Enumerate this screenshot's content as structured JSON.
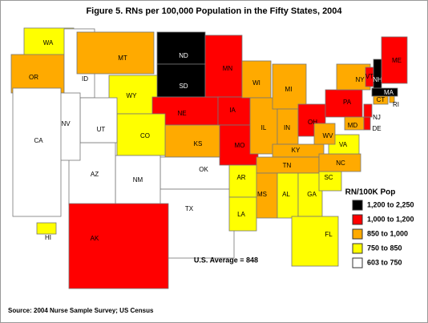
{
  "title": "Figure 5. RNs per 100,000 Population in the Fifty States, 2004",
  "legend": {
    "title": "RN/100K Pop",
    "items": [
      {
        "label": "1,200 to 2,250",
        "color": "#000000"
      },
      {
        "label": "1,000 to 1,200",
        "color": "#ff0000"
      },
      {
        "label": "850 to 1,000",
        "color": "#ffaa00"
      },
      {
        "label": "750 to  850",
        "color": "#ffff00"
      },
      {
        "label": "603 to  750",
        "color": "#ffffff"
      }
    ]
  },
  "average": "U.S. Average = 848",
  "source": "Source: 2004 Nurse Sample Survey; US Census",
  "states": [
    {
      "label": "WA",
      "color": "#ffff00"
    },
    {
      "label": "OR",
      "color": "#ffaa00"
    },
    {
      "label": "ID",
      "color": "#ffffff"
    },
    {
      "label": "MT",
      "color": "#ffaa00"
    },
    {
      "label": "WY",
      "color": "#ffff00"
    },
    {
      "label": "ND",
      "color": "#000000"
    },
    {
      "label": "SD",
      "color": "#000000"
    },
    {
      "label": "NE",
      "color": "#ff0000"
    },
    {
      "label": "KS",
      "color": "#ffaa00"
    },
    {
      "label": "OK",
      "color": "#ffffff"
    },
    {
      "label": "TX",
      "color": "#ffffff"
    },
    {
      "label": "CO",
      "color": "#ffff00"
    },
    {
      "label": "NM",
      "color": "#ffffff"
    },
    {
      "label": "AZ",
      "color": "#ffffff"
    },
    {
      "label": "UT",
      "color": "#ffffff"
    },
    {
      "label": "NV",
      "color": "#ffffff"
    },
    {
      "label": "CA",
      "color": "#ffffff"
    },
    {
      "label": "MN",
      "color": "#ff0000"
    },
    {
      "label": "IA",
      "color": "#ff0000"
    },
    {
      "label": "MO",
      "color": "#ff0000"
    },
    {
      "label": "AR",
      "color": "#ffff00"
    },
    {
      "label": "LA",
      "color": "#ffff00"
    },
    {
      "label": "WI",
      "color": "#ffaa00"
    },
    {
      "label": "IL",
      "color": "#ffaa00"
    },
    {
      "label": "MI",
      "color": "#ffaa00"
    },
    {
      "label": "IN",
      "color": "#ffaa00"
    },
    {
      "label": "OH",
      "color": "#ff0000"
    },
    {
      "label": "KY",
      "color": "#ffaa00"
    },
    {
      "label": "TN",
      "color": "#ffaa00"
    },
    {
      "label": "MS",
      "color": "#ffaa00"
    },
    {
      "label": "AL",
      "color": "#ffff00"
    },
    {
      "label": "GA",
      "color": "#ffff00"
    },
    {
      "label": "FL",
      "color": "#ffff00"
    },
    {
      "label": "SC",
      "color": "#ffff00"
    },
    {
      "label": "NC",
      "color": "#ffaa00"
    },
    {
      "label": "VA",
      "color": "#ffff00"
    },
    {
      "label": "WV",
      "color": "#ffaa00"
    },
    {
      "label": "PA",
      "color": "#ff0000"
    },
    {
      "label": "NY",
      "color": "#ffaa00"
    },
    {
      "label": "MD",
      "color": "#ffaa00"
    },
    {
      "label": "DE",
      "color": "#ff0000"
    },
    {
      "label": "NJ",
      "color": "#ff0000"
    },
    {
      "label": "VT",
      "color": "#ff0000"
    },
    {
      "label": "NH",
      "color": "#000000"
    },
    {
      "label": "ME",
      "color": "#ff0000"
    },
    {
      "label": "MA",
      "color": "#000000"
    },
    {
      "label": "RI",
      "color": "#ffaa00"
    },
    {
      "label": "CT",
      "color": "#ffaa00"
    },
    {
      "label": "AK",
      "color": "#ff0000"
    },
    {
      "label": "HI",
      "color": "#ffff00"
    }
  ]
}
